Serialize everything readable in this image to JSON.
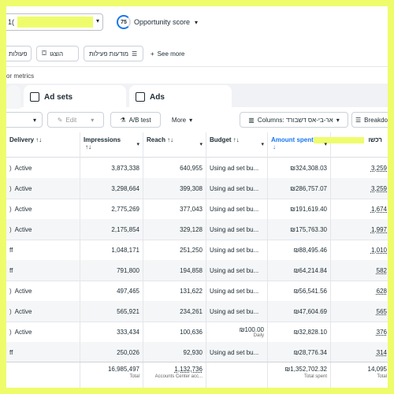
{
  "header": {
    "account_fragment": "1(",
    "opportunity_score_value": "75",
    "opportunity_score_label": "Opportunity score"
  },
  "action_row": {
    "actions_label": "פעולות",
    "show_label": "הוצגו",
    "activity_ads_label": "מודעות פעילות",
    "see_more_label": "See more"
  },
  "metrics_text": "or metrics",
  "tabs": [
    {
      "label": ""
    },
    {
      "label": "Ad sets"
    },
    {
      "label": "Ads"
    }
  ],
  "toolbar": {
    "edit_label": "Edit",
    "ab_test_label": "A/B test",
    "more_label": "More",
    "columns_label": "Columns: אר-בי-אס דשבורד",
    "breakdown_label": "Breakdo"
  },
  "table": {
    "columns": [
      {
        "label": "Delivery",
        "sort": "↑↓"
      },
      {
        "label": "Impressions",
        "sort": "↑↓"
      },
      {
        "label": "Reach",
        "sort": "↑↓"
      },
      {
        "label": "Budget",
        "sort": "↑↓"
      },
      {
        "label": "Amount spent",
        "sort": "↓"
      },
      {
        "label": "רכשו",
        "sort": ""
      }
    ],
    "rows": [
      {
        "delivery": "Active",
        "impressions": "3,873,338",
        "reach": "640,955",
        "budget": "Using ad set bu...",
        "budget_sub": "",
        "spent": "₪324,308.03",
        "purchases": "3,259"
      },
      {
        "delivery": "Active",
        "impressions": "3,298,664",
        "reach": "399,308",
        "budget": "Using ad set bu...",
        "budget_sub": "",
        "spent": "₪286,757.07",
        "purchases": "3,259"
      },
      {
        "delivery": "Active",
        "impressions": "2,775,269",
        "reach": "377,043",
        "budget": "Using ad set bu...",
        "budget_sub": "",
        "spent": "₪191,619.40",
        "purchases": "1,674"
      },
      {
        "delivery": "Active",
        "impressions": "2,175,854",
        "reach": "329,128",
        "budget": "Using ad set bu...",
        "budget_sub": "",
        "spent": "₪175,763.30",
        "purchases": "1,997"
      },
      {
        "delivery": "ff",
        "impressions": "1,048,171",
        "reach": "251,250",
        "budget": "Using ad set bu...",
        "budget_sub": "",
        "spent": "₪88,495.46",
        "purchases": "1,010"
      },
      {
        "delivery": "ff",
        "impressions": "791,800",
        "reach": "194,858",
        "budget": "Using ad set bu...",
        "budget_sub": "",
        "spent": "₪64,214.84",
        "purchases": "582"
      },
      {
        "delivery": "Active",
        "impressions": "497,465",
        "reach": "131,622",
        "budget": "Using ad set bu...",
        "budget_sub": "",
        "spent": "₪56,541.56",
        "purchases": "628"
      },
      {
        "delivery": "Active",
        "impressions": "565,921",
        "reach": "234,261",
        "budget": "Using ad set bu...",
        "budget_sub": "",
        "spent": "₪47,604.69",
        "purchases": "565"
      },
      {
        "delivery": "Active",
        "impressions": "333,434",
        "reach": "100,636",
        "budget": "₪100.00",
        "budget_sub": "Daily",
        "spent": "₪32,828.10",
        "purchases": "376"
      },
      {
        "delivery": "ff",
        "impressions": "250,026",
        "reach": "92,930",
        "budget": "Using ad set bu...",
        "budget_sub": "",
        "spent": "₪28,776.34",
        "purchases": "314"
      }
    ],
    "totals": {
      "impressions": "16,985,497",
      "impressions_sub": "Total",
      "reach": "1,132,736",
      "reach_sub": "Accounts Center acc...",
      "spent": "₪1,352,702.32",
      "spent_sub": "Total spent",
      "purchases": "14,095",
      "purchases_sub": "Total"
    }
  },
  "colors": {
    "accent": "#1877f2",
    "highlight": "#eefc6c",
    "status_active": "#42b72a"
  }
}
